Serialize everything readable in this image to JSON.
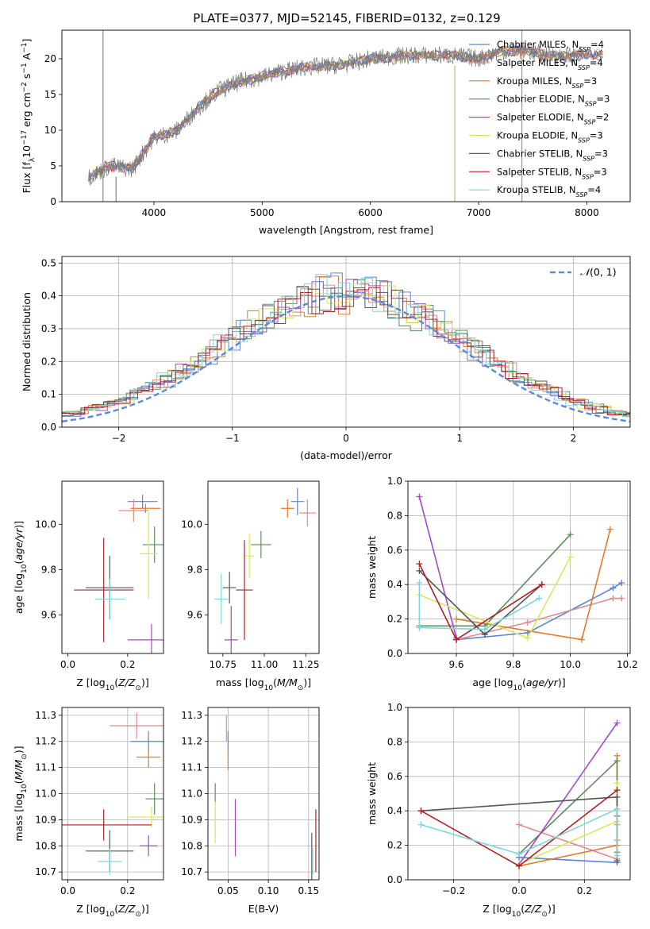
{
  "figure_title": "PLATE=0377, MJD=52145, FIBERID=0132, z=0.129",
  "colors": {
    "Chabrier MILES": "#5b84d8",
    "Salpeter MILES": "#e38a8a",
    "Kroupa MILES": "#e07b2a",
    "Chabrier ELODIE": "#5e8c5e",
    "Salpeter ELODIE": "#a34ac8",
    "Kroupa ELODIE": "#d7e860",
    "Chabrier STELIB": "#555555",
    "Salpeter STELIB": "#b02020",
    "Kroupa STELIB": "#80d4dc"
  },
  "chart_data": [
    {
      "id": "spectrum",
      "type": "line",
      "title": "PLATE=0377, MJD=52145, FIBERID=0132, z=0.129",
      "xlabel": "wavelength [Angstrom, rest frame]",
      "ylabel": "Flux [f_λ10^-17 erg cm^-2 s^-1 A^-1]",
      "xlim": [
        3150,
        8400
      ],
      "ylim": [
        0,
        24
      ],
      "xticks": [
        4000,
        5000,
        6000,
        7000,
        8000
      ],
      "yticks": [
        0,
        5,
        10,
        15,
        20
      ],
      "legend_position": "top-right",
      "legend": [
        "Chabrier MILES, N_SSP=4",
        "Salpeter MILES, N_SSP=4",
        "Kroupa MILES, N_SSP=3",
        "Chabrier ELODIE, N_SSP=3",
        "Salpeter ELODIE, N_SSP=2",
        "Kroupa ELODIE, N_SSP=3",
        "Chabrier STELIB, N_SSP=3",
        "Salpeter STELIB, N_SSP=3",
        "Kroupa STELIB, N_SSP=4"
      ],
      "data_x": [
        3400,
        3600,
        3800,
        4000,
        4200,
        4400,
        4600,
        4800,
        5000,
        5200,
        5400,
        5600,
        5800,
        6000,
        6200,
        6400,
        6600,
        6800,
        7000,
        7200,
        7400,
        7600,
        7800,
        8000,
        8200
      ],
      "data_y": [
        3.5,
        5.0,
        4.6,
        9.0,
        9.8,
        13.0,
        15.6,
        16.8,
        17.5,
        18.3,
        18.8,
        19.0,
        19.3,
        20.0,
        20.3,
        20.5,
        20.5,
        20.4,
        20.0,
        21.0,
        21.2,
        20.6,
        20.3,
        20.6,
        20.5
      ]
    },
    {
      "id": "residuals",
      "type": "line",
      "xlabel": "(data-model)/error",
      "ylabel": "Normed distribution",
      "xlim": [
        -2.5,
        2.5
      ],
      "ylim": [
        0,
        0.52
      ],
      "xticks": [
        -2,
        -1,
        0,
        1,
        2
      ],
      "yticks": [
        0.0,
        0.1,
        0.2,
        0.3,
        0.4,
        0.5
      ],
      "grid": true,
      "legend_position": "top-right",
      "reference_curve": "N(0,1)",
      "bin_width": 0.1
    },
    {
      "id": "age-vs-Z",
      "type": "scatter",
      "xlabel": "Z [log10(Z/Z⊙)]",
      "ylabel": "age [log10(age/yr)]",
      "xlim": [
        -0.02,
        0.32
      ],
      "ylim": [
        9.43,
        10.19
      ],
      "xticks": [
        0.0,
        0.2
      ],
      "yticks": [
        9.6,
        9.8,
        10.0
      ],
      "points": [
        {
          "model": "Chabrier MILES",
          "x": 0.25,
          "y": 10.1,
          "xerr": 0.05,
          "yerr": 0.03
        },
        {
          "model": "Salpeter MILES",
          "x": 0.22,
          "y": 10.06,
          "xerr": 0.05,
          "yerr": 0.05
        },
        {
          "model": "Kroupa MILES",
          "x": 0.26,
          "y": 10.07,
          "xerr": 0.05,
          "yerr": 0.02
        },
        {
          "model": "Chabrier ELODIE",
          "x": 0.29,
          "y": 9.91,
          "xerr": 0.04,
          "yerr": 0.08
        },
        {
          "model": "Salpeter ELODIE",
          "x": 0.28,
          "y": 9.49,
          "xerr": 0.08,
          "yerr": 0.07
        },
        {
          "model": "Kroupa ELODIE",
          "x": 0.27,
          "y": 9.87,
          "xerr": 0.03,
          "yerr": 0.2
        },
        {
          "model": "Chabrier STELIB",
          "x": 0.14,
          "y": 9.72,
          "xerr": 0.08,
          "yerr": 0.14
        },
        {
          "model": "Salpeter STELIB",
          "x": 0.12,
          "y": 9.71,
          "xerr": 0.1,
          "yerr": 0.23
        },
        {
          "model": "Kroupa STELIB",
          "x": 0.14,
          "y": 9.67,
          "xerr": 0.05,
          "yerr": 0.09
        }
      ]
    },
    {
      "id": "age-vs-mass",
      "type": "scatter",
      "xlabel": "mass [log10(M/M⊙)]",
      "ylabel": "",
      "xlim": [
        10.66,
        11.33
      ],
      "ylim": [
        9.43,
        10.19
      ],
      "xticks": [
        10.75,
        11.0,
        11.25
      ],
      "yticks": [
        9.6,
        9.8,
        10.0
      ],
      "points": [
        {
          "model": "Chabrier MILES",
          "x": 11.2,
          "y": 10.1,
          "xerr": 0.04,
          "yerr": 0.06
        },
        {
          "model": "Salpeter MILES",
          "x": 11.26,
          "y": 10.05,
          "xerr": 0.05,
          "yerr": 0.06
        },
        {
          "model": "Kroupa MILES",
          "x": 11.14,
          "y": 10.07,
          "xerr": 0.04,
          "yerr": 0.04
        },
        {
          "model": "Chabrier ELODIE",
          "x": 10.98,
          "y": 9.91,
          "xerr": 0.06,
          "yerr": 0.06
        },
        {
          "model": "Salpeter ELODIE",
          "x": 10.8,
          "y": 9.49,
          "xerr": 0.04,
          "yerr": 0.15
        },
        {
          "model": "Kroupa ELODIE",
          "x": 10.91,
          "y": 9.86,
          "xerr": 0.03,
          "yerr": 0.1
        },
        {
          "model": "Chabrier STELIB",
          "x": 10.79,
          "y": 9.72,
          "xerr": 0.04,
          "yerr": 0.07
        },
        {
          "model": "Salpeter STELIB",
          "x": 10.88,
          "y": 9.71,
          "xerr": 0.05,
          "yerr": 0.22
        },
        {
          "model": "Kroupa STELIB",
          "x": 10.74,
          "y": 9.67,
          "xerr": 0.04,
          "yerr": 0.11
        }
      ]
    },
    {
      "id": "mass-weight-vs-age",
      "type": "line",
      "xlabel": "age [log10(age/yr)]",
      "ylabel": "mass weight",
      "xlim": [
        9.43,
        10.21
      ],
      "ylim": [
        0,
        1
      ],
      "xticks": [
        9.6,
        9.8,
        10.0,
        10.2
      ],
      "yticks": [
        0.0,
        0.2,
        0.4,
        0.6,
        0.8,
        1.0
      ],
      "grid": true,
      "series": [
        {
          "model": "Chabrier MILES",
          "x": [
            9.6,
            9.85,
            10.15,
            10.18
          ],
          "y": [
            0.08,
            0.12,
            0.38,
            0.41
          ]
        },
        {
          "model": "Salpeter MILES",
          "x": [
            9.6,
            9.85,
            10.15,
            10.18
          ],
          "y": [
            0.08,
            0.18,
            0.32,
            0.32
          ]
        },
        {
          "model": "Kroupa MILES",
          "x": [
            9.6,
            10.04,
            10.14
          ],
          "y": [
            0.2,
            0.08,
            0.72
          ]
        },
        {
          "model": "Chabrier ELODIE",
          "x": [
            9.47,
            9.7,
            10.0
          ],
          "y": [
            0.16,
            0.16,
            0.69
          ]
        },
        {
          "model": "Salpeter ELODIE",
          "x": [
            9.47,
            9.6
          ],
          "y": [
            0.91,
            0.09
          ]
        },
        {
          "model": "Kroupa ELODIE",
          "x": [
            9.47,
            9.85,
            10.0
          ],
          "y": [
            0.34,
            0.09,
            0.56
          ]
        },
        {
          "model": "Chabrier STELIB",
          "x": [
            9.47,
            9.7,
            9.9
          ],
          "y": [
            0.48,
            0.11,
            0.4
          ]
        },
        {
          "model": "Salpeter STELIB",
          "x": [
            9.47,
            9.6,
            9.9
          ],
          "y": [
            0.52,
            0.08,
            0.4
          ]
        },
        {
          "model": "Kroupa STELIB",
          "x": [
            9.47,
            9.47,
            9.7,
            9.89
          ],
          "y": [
            0.41,
            0.15,
            0.14,
            0.32
          ]
        }
      ]
    },
    {
      "id": "mass-vs-Z",
      "type": "scatter",
      "xlabel": "Z [log10(Z/Z⊙)]",
      "ylabel": "mass [log10(M/M⊙)]",
      "xlim": [
        -0.02,
        0.32
      ],
      "ylim": [
        10.67,
        11.33
      ],
      "xticks": [
        0.0,
        0.2
      ],
      "yticks": [
        10.7,
        10.8,
        10.9,
        11.0,
        11.1,
        11.2,
        11.3
      ],
      "grid": true,
      "points": [
        {
          "model": "Chabrier MILES",
          "x": 0.27,
          "y": 11.2,
          "xerr": 0.06,
          "yerr": 0.04
        },
        {
          "model": "Salpeter MILES",
          "x": 0.23,
          "y": 11.26,
          "xerr": 0.09,
          "yerr": 0.05
        },
        {
          "model": "Kroupa MILES",
          "x": 0.27,
          "y": 11.14,
          "xerr": 0.04,
          "yerr": 0.04
        },
        {
          "model": "Chabrier ELODIE",
          "x": 0.29,
          "y": 10.98,
          "xerr": 0.03,
          "yerr": 0.06
        },
        {
          "model": "Salpeter ELODIE",
          "x": 0.27,
          "y": 10.8,
          "xerr": 0.03,
          "yerr": 0.04
        },
        {
          "model": "Kroupa ELODIE",
          "x": 0.28,
          "y": 10.91,
          "xerr": 0.08,
          "yerr": 0.04
        },
        {
          "model": "Chabrier STELIB",
          "x": 0.14,
          "y": 10.78,
          "xerr": 0.08,
          "yerr": 0.08
        },
        {
          "model": "Salpeter STELIB",
          "x": 0.12,
          "y": 10.88,
          "xerr": 0.16,
          "yerr": 0.06
        },
        {
          "model": "Kroupa STELIB",
          "x": 0.14,
          "y": 10.74,
          "xerr": 0.04,
          "yerr": 0.05
        }
      ]
    },
    {
      "id": "mass-vs-EBV",
      "type": "scatter",
      "xlabel": "E(B-V)",
      "ylabel": "",
      "xlim": [
        0.025,
        0.163
      ],
      "ylim": [
        10.67,
        11.33
      ],
      "xticks": [
        0.05,
        0.1,
        0.15
      ],
      "yticks": [
        10.7,
        10.8,
        10.9,
        11.0,
        11.1,
        11.2,
        11.3
      ],
      "grid": true,
      "points": [
        {
          "model": "Chabrier MILES",
          "x": 0.05,
          "y": 11.2,
          "xerr": 0,
          "yerr": 0.04
        },
        {
          "model": "Salpeter MILES",
          "x": 0.048,
          "y": 11.25,
          "xerr": 0,
          "yerr": 0.05
        },
        {
          "model": "Kroupa MILES",
          "x": 0.05,
          "y": 11.13,
          "xerr": 0,
          "yerr": 0.04
        },
        {
          "model": "Chabrier ELODIE",
          "x": 0.034,
          "y": 11.0,
          "xerr": 0,
          "yerr": 0.04
        },
        {
          "model": "Salpeter ELODIE",
          "x": 0.059,
          "y": 10.87,
          "xerr": 0,
          "yerr": 0.11
        },
        {
          "model": "Kroupa ELODIE",
          "x": 0.034,
          "y": 10.89,
          "xerr": 0,
          "yerr": 0.08
        },
        {
          "model": "Chabrier STELIB",
          "x": 0.154,
          "y": 10.75,
          "xerr": 0,
          "yerr": 0.1
        },
        {
          "model": "Salpeter STELIB",
          "x": 0.159,
          "y": 10.82,
          "xerr": 0,
          "yerr": 0.12
        },
        {
          "model": "Kroupa STELIB",
          "x": 0.155,
          "y": 10.74,
          "xerr": 0,
          "yerr": 0.05
        }
      ]
    },
    {
      "id": "mass-weight-vs-Z",
      "type": "line",
      "xlabel": "Z [log10(Z/Z⊙)]",
      "ylabel": "mass weight",
      "xlim": [
        -0.34,
        0.34
      ],
      "ylim": [
        0,
        1
      ],
      "xticks": [
        -0.2,
        0.0,
        0.2
      ],
      "yticks": [
        0.0,
        0.2,
        0.4,
        0.6,
        0.8,
        1.0
      ],
      "grid": true,
      "series": [
        {
          "model": "Chabrier MILES",
          "x": [
            0.0,
            0.3,
            0.3,
            0.3
          ],
          "y": [
            0.13,
            0.1,
            0.37,
            0.41
          ]
        },
        {
          "model": "Salpeter MILES",
          "x": [
            0.0,
            0.3,
            0.3,
            0.3
          ],
          "y": [
            0.32,
            0.12,
            0.23,
            0.32
          ]
        },
        {
          "model": "Kroupa MILES",
          "x": [
            0.0,
            0.3,
            0.3
          ],
          "y": [
            0.08,
            0.2,
            0.72
          ]
        },
        {
          "model": "Chabrier ELODIE",
          "x": [
            0.0,
            0.3,
            0.3
          ],
          "y": [
            0.15,
            0.69,
            0.16
          ]
        },
        {
          "model": "Salpeter ELODIE",
          "x": [
            0.0,
            0.3
          ],
          "y": [
            0.09,
            0.91
          ]
        },
        {
          "model": "Kroupa ELODIE",
          "x": [
            0.0,
            0.3,
            0.3
          ],
          "y": [
            0.09,
            0.34,
            0.56
          ]
        },
        {
          "model": "Chabrier STELIB",
          "x": [
            -0.3,
            0.3,
            0.3
          ],
          "y": [
            0.4,
            0.48,
            0.11
          ]
        },
        {
          "model": "Salpeter STELIB",
          "x": [
            -0.3,
            0.0,
            0.3
          ],
          "y": [
            0.4,
            0.08,
            0.52
          ]
        },
        {
          "model": "Kroupa STELIB",
          "x": [
            -0.3,
            0.0,
            0.3,
            0.3
          ],
          "y": [
            0.32,
            0.15,
            0.41,
            0.14
          ]
        }
      ]
    }
  ]
}
